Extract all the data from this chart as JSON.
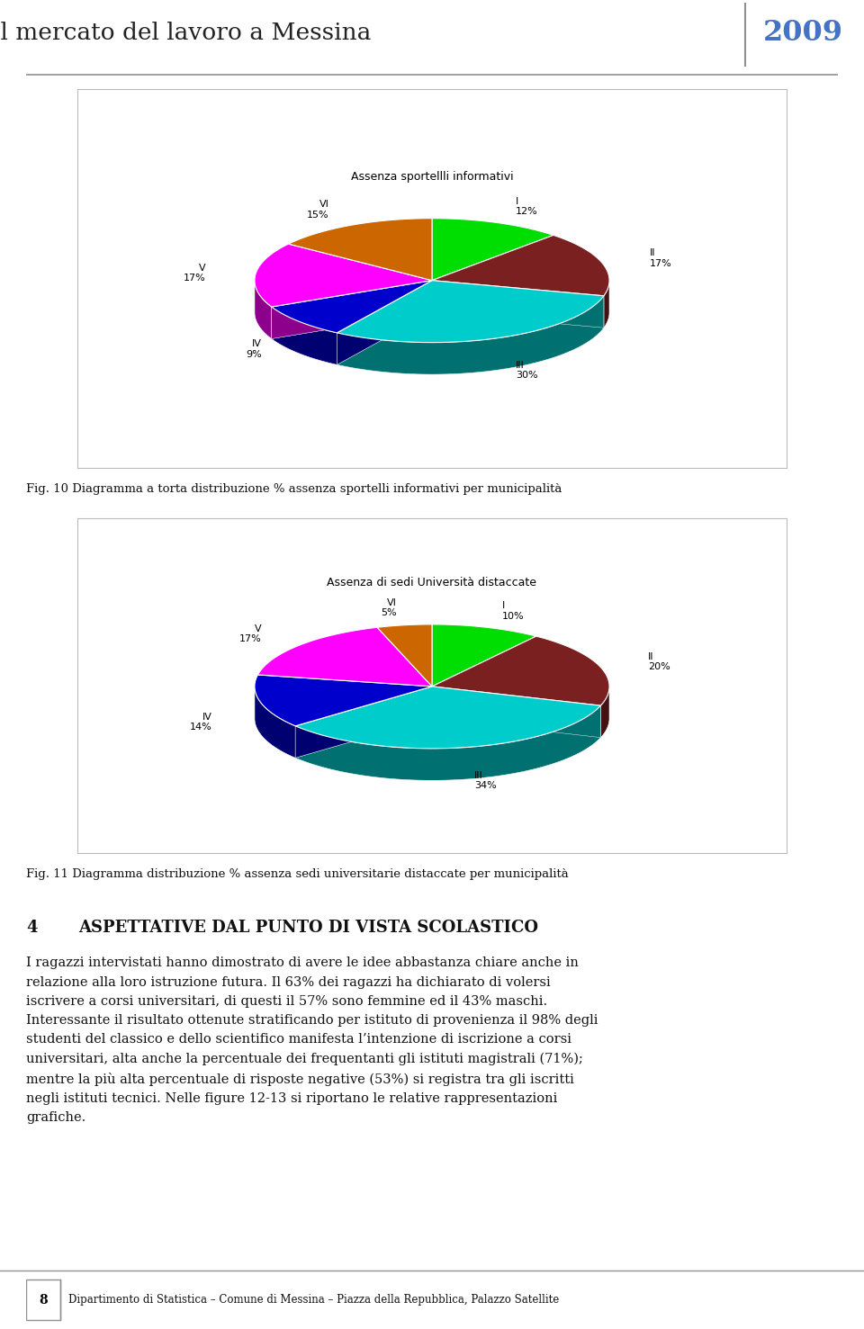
{
  "page_title": "Il mercato del lavoro a Messina",
  "page_year": "2009",
  "pie1_title": "Assenza sportellli informativi",
  "pie1_labels": [
    "I",
    "II",
    "III",
    "IV",
    "V",
    "VI"
  ],
  "pie1_values": [
    12,
    17,
    30,
    9,
    17,
    15
  ],
  "pie1_colors": [
    "#00dd00",
    "#7b2020",
    "#00cccc",
    "#0000cc",
    "#ff00ff",
    "#cc6600"
  ],
  "pie2_title": "Assenza di sedi Università distaccate",
  "pie2_labels": [
    "I",
    "II",
    "III",
    "IV",
    "V",
    "VI"
  ],
  "pie2_values": [
    10,
    20,
    34,
    14,
    17,
    5
  ],
  "pie2_colors": [
    "#00dd00",
    "#7b2020",
    "#00cccc",
    "#0000cc",
    "#ff00ff",
    "#cc6600"
  ],
  "fig10_caption": "Fig. 10 Diagramma a torta distribuzione % assenza sportelli informativi per municipalità",
  "fig11_caption": "Fig. 11 Diagramma distribuzione % assenza sedi universitarie distaccate per municipalità",
  "section_number": "4",
  "section_title": "ASPETTATIVE DAL PUNTO DI VISTA SCOLASTICO",
  "body_text": "I ragazzi intervistati hanno dimostrato di avere le idee abbastanza chiare anche in\nrelazione alla loro istruzione futura. Il 63% dei ragazzi ha dichiarato di volersi\niscrivere a corsi universitari, di questi il 57% sono femmine ed il 43% maschi.\nInteressante il risultato ottenute stratificando per istituto di provenienza il 98% degli\nstudenti del classico e dello scientifico manifesta l’intenzione di iscrizione a corsi\nuniversitari, alta anche la percentuale dei frequentanti gli istituti magistrali (71%);\nmentre la più alta percentuale di risposte negative (53%) si registra tra gli iscritti\nnegli istituti tecnici. Nelle figure 12-13 si riportano le relative rappresentazioni\ngrafiche.",
  "footer_number": "8",
  "footer_text": "Dipartimento di Statistica – Comune di Messina – Piazza della Repubblica, Palazzo Satellite",
  "bg_color": "#ffffff",
  "header_line_color": "#909090",
  "year_color": "#4472c4"
}
